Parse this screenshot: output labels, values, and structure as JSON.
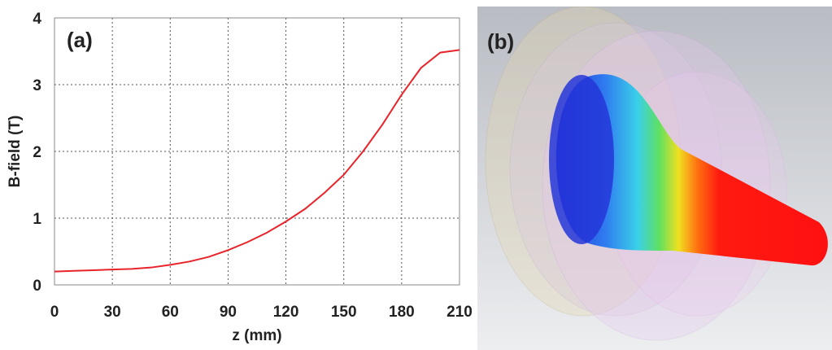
{
  "chart_data": {
    "type": "line",
    "annotation": "(a)",
    "x_label": "z (mm)",
    "y_label": "B-field (T)",
    "x": [
      0,
      10,
      20,
      30,
      40,
      50,
      60,
      70,
      80,
      90,
      100,
      110,
      120,
      130,
      140,
      150,
      160,
      170,
      180,
      190,
      200,
      210
    ],
    "series": [
      {
        "color": "#e8242a",
        "values": [
          0.2,
          0.21,
          0.22,
          0.23,
          0.24,
          0.26,
          0.3,
          0.35,
          0.42,
          0.52,
          0.64,
          0.78,
          0.95,
          1.14,
          1.38,
          1.65,
          2.0,
          2.4,
          2.85,
          3.25,
          3.48,
          3.52
        ]
      }
    ],
    "xlim": [
      0,
      210
    ],
    "xticks": [
      0,
      30,
      60,
      90,
      120,
      150,
      180,
      210
    ],
    "ylim": [
      0,
      4
    ],
    "yticks": [
      0,
      1,
      2,
      3,
      4
    ],
    "grid": true
  },
  "image_panel": {
    "label": "(b)"
  }
}
